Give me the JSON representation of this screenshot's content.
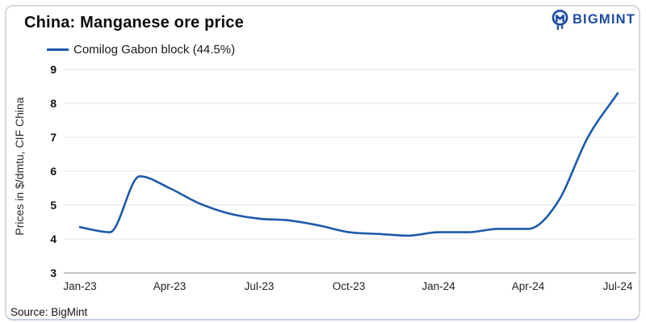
{
  "colors": {
    "line": "#1d5aa9",
    "logo": "#1e4da0",
    "grid": "#e5e5e5",
    "axis": "#b0b0b0",
    "title_text": "#0c0c0c"
  },
  "header": {
    "title": "China: Manganese ore price",
    "logo_text": "BIGMINT",
    "logo_icon": "bigmint-miner-icon"
  },
  "legend": {
    "label": "Comilog Gabon block (44.5%)"
  },
  "footer": {
    "source": "Source: BigMint"
  },
  "chart_data": {
    "type": "line",
    "title": "China: Manganese ore price",
    "ylabel": "Prices in $/dmtu, CIF China",
    "xlabel": "",
    "ylim": [
      3,
      9
    ],
    "y_ticks": [
      3,
      4,
      5,
      6,
      7,
      8,
      9
    ],
    "grid": "horizontal",
    "legend_position": "top-left",
    "x": [
      "Jan-23",
      "Feb-23",
      "Mar-23",
      "Apr-23",
      "May-23",
      "Jun-23",
      "Jul-23",
      "Aug-23",
      "Sep-23",
      "Oct-23",
      "Nov-23",
      "Dec-23",
      "Jan-24",
      "Feb-24",
      "Mar-24",
      "Apr-24",
      "May-24",
      "Jun-24",
      "Jul-24"
    ],
    "x_tick_labels": [
      "Jan-23",
      "Apr-23",
      "Jul-23",
      "Oct-23",
      "Jan-24",
      "Apr-24",
      "Jul-24"
    ],
    "series": [
      {
        "name": "Comilog Gabon block (44.5%)",
        "color": "#1d5aa9",
        "values": [
          4.35,
          4.2,
          5.85,
          5.5,
          5.05,
          4.75,
          4.6,
          4.55,
          4.4,
          4.2,
          4.15,
          4.1,
          4.2,
          4.2,
          4.3,
          4.3,
          5.1,
          7.0,
          8.3
        ]
      }
    ],
    "source": "Source: BigMint"
  }
}
